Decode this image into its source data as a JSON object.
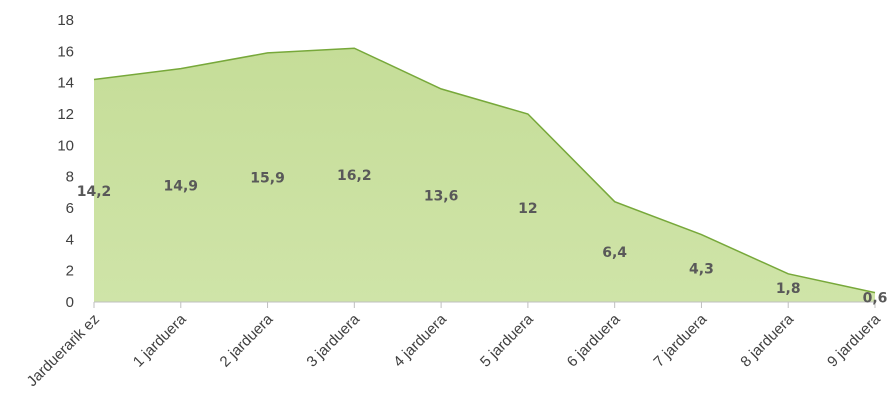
{
  "chart_data": {
    "type": "area",
    "title": "",
    "xlabel": "",
    "ylabel": "",
    "categories": [
      "Jarduerarik ez",
      "1 jarduera",
      "2 jarduera",
      "3 jarduera",
      "4 jarduera",
      "5 jarduera",
      "6 jarduera",
      "7 jarduera",
      "8 jarduera",
      "9 jarduera"
    ],
    "values": [
      14.2,
      14.9,
      15.9,
      16.2,
      13.6,
      12,
      6.4,
      4.3,
      1.8,
      0.6
    ],
    "data_labels": [
      "14,2",
      "14,9",
      "15,9",
      "16,2",
      "13,6",
      "12",
      "6,4",
      "4,3",
      "1,8",
      "0,6"
    ],
    "ylim": [
      0,
      18
    ],
    "y_ticks": [
      0,
      2,
      4,
      6,
      8,
      10,
      12,
      14,
      16,
      18
    ],
    "y_tick_labels": [
      "0",
      "2",
      "4",
      "6",
      "8",
      "10",
      "12",
      "14",
      "16",
      "18"
    ],
    "grid": false,
    "legend": "none",
    "colors": {
      "fill": "#c9e0a0",
      "stroke": "#77a83a",
      "axis": "#bfbfbf"
    }
  }
}
